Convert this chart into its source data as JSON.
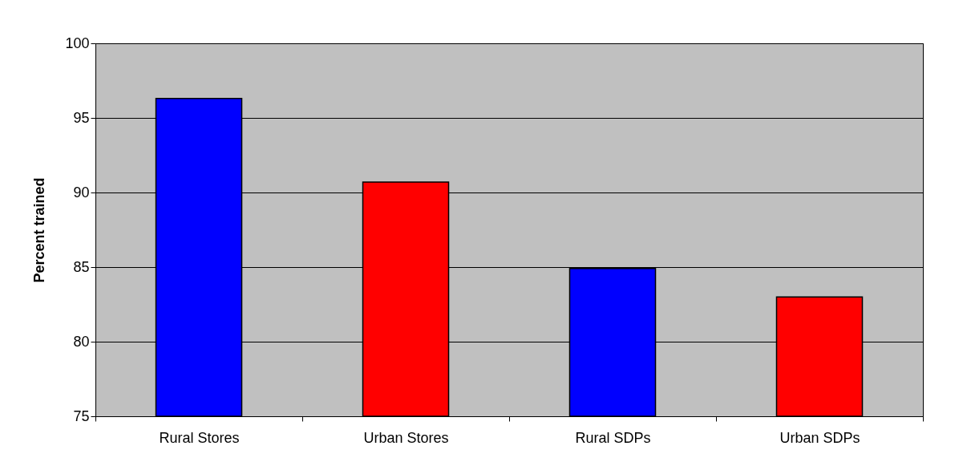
{
  "chart_data": {
    "type": "bar",
    "ylabel": "Percent trained",
    "categories": [
      "Rural Stores",
      "Urban Stores",
      "Rural SDPs",
      "Urban SDPs"
    ],
    "values": [
      96.3,
      90.7,
      84.9,
      83.0
    ],
    "colors": [
      "#0000ff",
      "#ff0000",
      "#0000ff",
      "#ff0000"
    ],
    "ylim": [
      75,
      100
    ],
    "yticks": [
      75,
      80,
      85,
      90,
      95,
      100
    ],
    "grid": "y"
  }
}
